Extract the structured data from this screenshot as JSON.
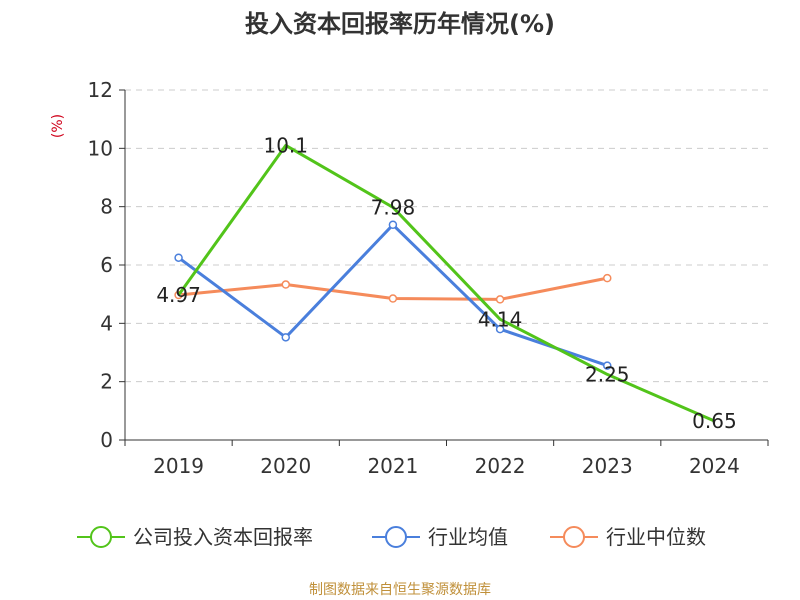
{
  "chart_data": {
    "type": "line",
    "title": "投入资本回报率历年情况(%)",
    "ylabel": "(%)",
    "xlabel": "",
    "categories": [
      "2019",
      "2020",
      "2021",
      "2022",
      "2023",
      "2024"
    ],
    "ylim": [
      0,
      12
    ],
    "yticks": [
      0,
      2,
      4,
      6,
      8,
      10,
      12
    ],
    "grid": true,
    "legend_position": "bottom",
    "series": [
      {
        "name": "公司投入资本回报率",
        "color": "#52c41a",
        "values": [
          4.97,
          10.1,
          7.98,
          4.14,
          2.25,
          0.65
        ],
        "labels": [
          "4.97",
          "10.1",
          "7.98",
          "4.14",
          "2.25",
          "0.65"
        ]
      },
      {
        "name": "行业均值",
        "color": "#4a7fdc",
        "values": [
          6.25,
          3.52,
          7.38,
          3.8,
          2.55,
          null
        ]
      },
      {
        "name": "行业中位数",
        "color": "#f58b5b",
        "values": [
          4.97,
          5.33,
          4.85,
          4.82,
          5.55,
          null
        ]
      }
    ]
  },
  "source": "制图数据来自恒生聚源数据库"
}
